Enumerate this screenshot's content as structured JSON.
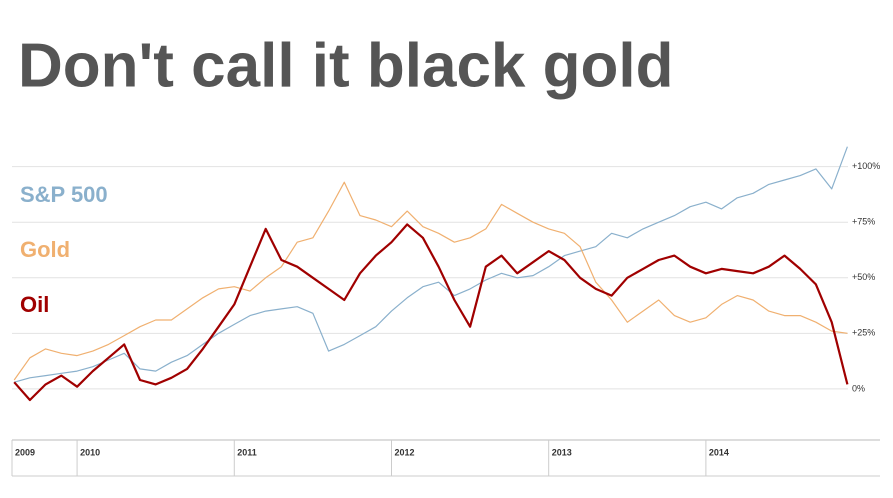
{
  "chart_data": {
    "type": "line",
    "title": "Don't call it black gold",
    "x": [
      2009.6,
      2009.7,
      2009.8,
      2009.9,
      2010.0,
      2010.1,
      2010.2,
      2010.3,
      2010.4,
      2010.5,
      2010.6,
      2010.7,
      2010.8,
      2010.9,
      2011.0,
      2011.1,
      2011.2,
      2011.3,
      2011.4,
      2011.5,
      2011.6,
      2011.7,
      2011.8,
      2011.9,
      2012.0,
      2012.1,
      2012.2,
      2012.3,
      2012.4,
      2012.5,
      2012.6,
      2012.7,
      2012.8,
      2012.9,
      2013.0,
      2013.1,
      2013.2,
      2013.3,
      2013.4,
      2013.5,
      2013.6,
      2013.7,
      2013.8,
      2013.9,
      2014.0,
      2014.1,
      2014.2,
      2014.3,
      2014.4,
      2014.5,
      2014.6,
      2014.7,
      2014.8,
      2014.9
    ],
    "series": [
      {
        "name": "S&P 500",
        "color": "#8ab0cc",
        "values": [
          3,
          5,
          6,
          7,
          8,
          10,
          13,
          16,
          9,
          8,
          12,
          15,
          20,
          25,
          29,
          33,
          35,
          36,
          37,
          34,
          17,
          20,
          24,
          28,
          35,
          41,
          46,
          48,
          42,
          45,
          49,
          52,
          50,
          51,
          55,
          60,
          62,
          64,
          70,
          68,
          72,
          75,
          78,
          82,
          84,
          81,
          86,
          88,
          92,
          94,
          96,
          99,
          90,
          109
        ]
      },
      {
        "name": "Gold",
        "color": "#f0b070",
        "values": [
          4,
          14,
          18,
          16,
          15,
          17,
          20,
          24,
          28,
          31,
          31,
          36,
          41,
          45,
          46,
          44,
          50,
          55,
          66,
          68,
          80,
          93,
          78,
          76,
          73,
          80,
          73,
          70,
          66,
          68,
          72,
          83,
          79,
          75,
          72,
          70,
          64,
          48,
          40,
          30,
          35,
          40,
          33,
          30,
          32,
          38,
          42,
          40,
          35,
          33,
          33,
          30,
          26,
          25
        ]
      },
      {
        "name": "Oil",
        "color": "#a00000",
        "values": [
          3,
          -5,
          2,
          6,
          1,
          8,
          14,
          20,
          4,
          2,
          5,
          9,
          18,
          28,
          38,
          55,
          72,
          58,
          55,
          50,
          45,
          40,
          52,
          60,
          66,
          74,
          68,
          55,
          40,
          28,
          55,
          60,
          52,
          57,
          62,
          58,
          50,
          45,
          42,
          50,
          54,
          58,
          60,
          55,
          52,
          54,
          53,
          52,
          55,
          60,
          54,
          47,
          30,
          2
        ]
      }
    ],
    "xlim": [
      2009.586,
      2014.904
    ],
    "xticks": [
      {
        "value": 2009.586,
        "label": "2009"
      },
      2010,
      2011,
      2012,
      2013,
      2014
    ],
    "ylim": [
      -23,
      112
    ],
    "yticks": [
      {
        "value": 0,
        "label": "0%"
      },
      {
        "value": 25,
        "label": "+25%"
      },
      {
        "value": 50,
        "label": "+50%"
      },
      {
        "value": 75,
        "label": "+75%"
      },
      {
        "value": 100,
        "label": "+100%"
      }
    ],
    "grid": true
  }
}
